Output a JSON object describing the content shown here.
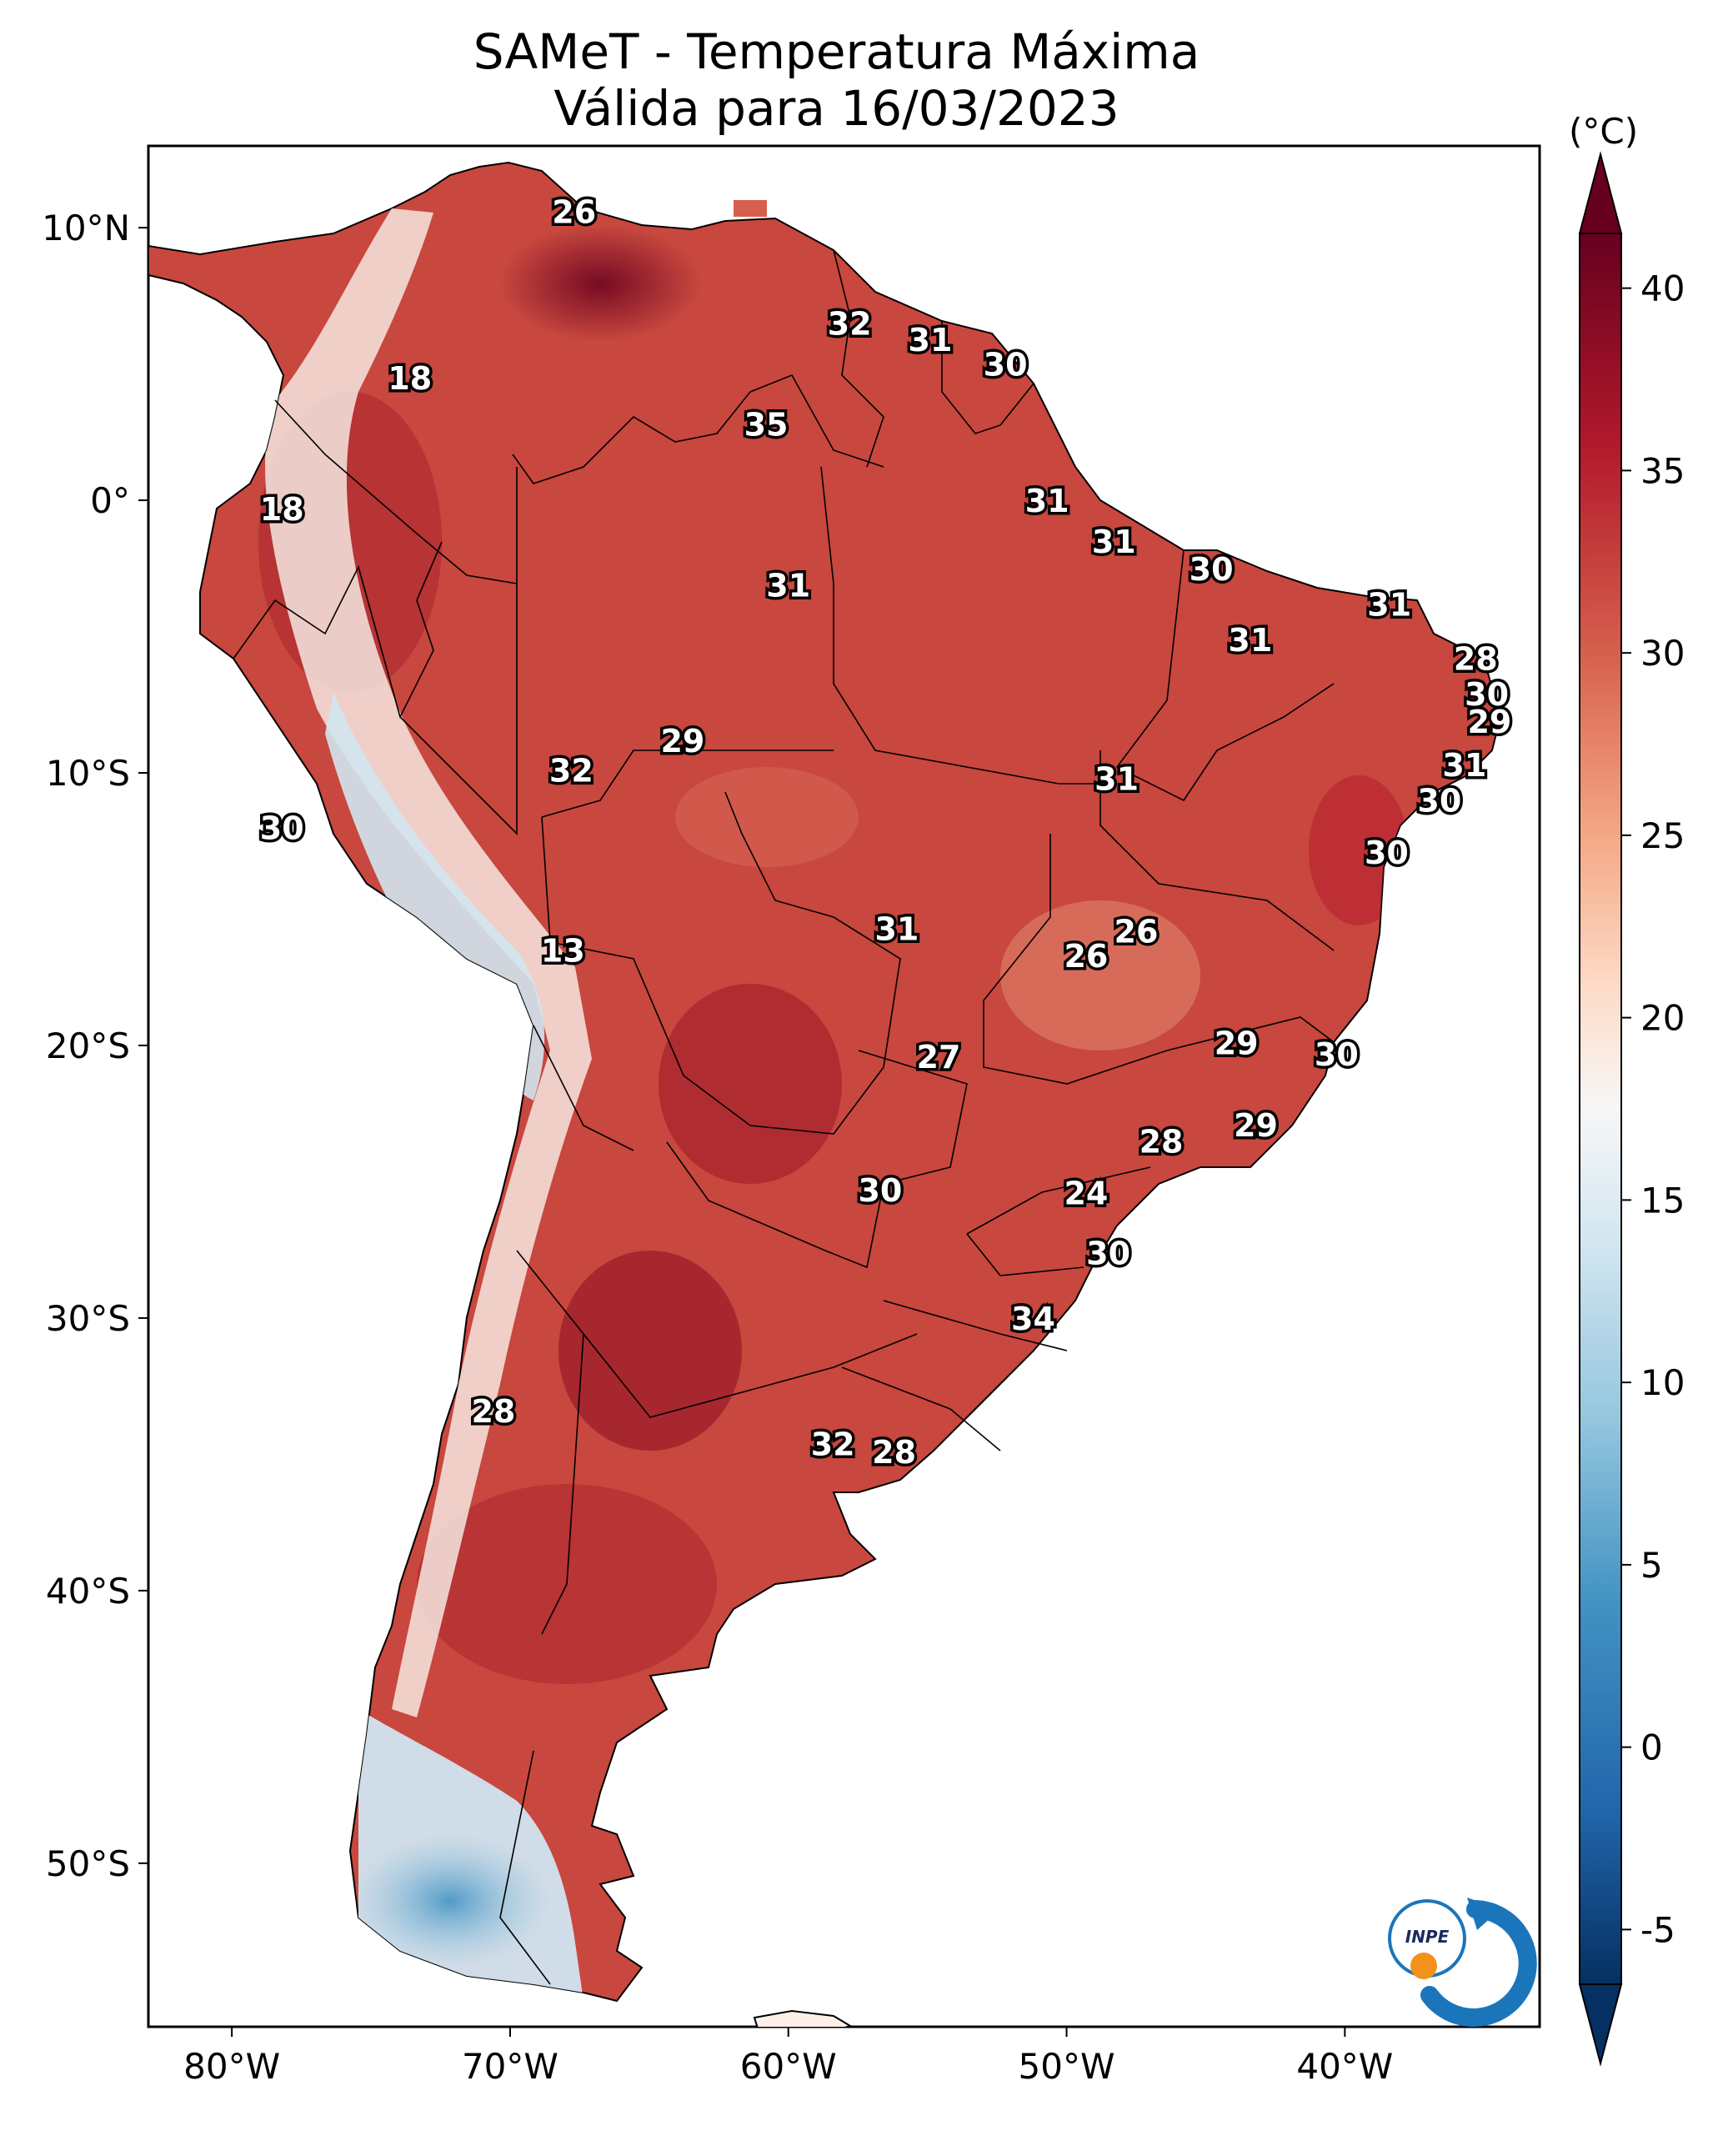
{
  "title": "SAMeT - Temperatura Máxima",
  "subtitle": "Válida para 16/03/2023",
  "colorbar": {
    "unit": "(°C)",
    "ticks": [
      "40",
      "35",
      "30",
      "25",
      "20",
      "15",
      "10",
      "5",
      "0",
      "-5"
    ],
    "colors": [
      "#67001f",
      "#b2182b",
      "#d6604d",
      "#f4a582",
      "#fddbc7",
      "#f7f7f7",
      "#d1e5f0",
      "#92c5de",
      "#4393c3",
      "#2166ac",
      "#053061"
    ]
  },
  "axes": {
    "lon_ticks": [
      "80°W",
      "70°W",
      "60°W",
      "50°W",
      "40°W"
    ],
    "lat_ticks": [
      "10°N",
      "0°",
      "10°S",
      "20°S",
      "30°S",
      "40°S",
      "50°S"
    ],
    "lon_range": [
      -83,
      -33
    ],
    "lat_range": [
      -56,
      13
    ]
  },
  "logo": {
    "text": "INPE",
    "icon": "inpe-logo-icon"
  },
  "station_labels": [
    {
      "value": "26",
      "lon": -67.7,
      "lat": 10.6
    },
    {
      "value": "32",
      "lon": -57.8,
      "lat": 6.5
    },
    {
      "value": "31",
      "lon": -54.9,
      "lat": 5.9
    },
    {
      "value": "30",
      "lon": -52.2,
      "lat": 5.0
    },
    {
      "value": "18",
      "lon": -73.6,
      "lat": 4.5
    },
    {
      "value": "35",
      "lon": -60.8,
      "lat": 2.8
    },
    {
      "value": "18",
      "lon": -78.2,
      "lat": -0.3
    },
    {
      "value": "31",
      "lon": -50.7,
      "lat": 0.0
    },
    {
      "value": "31",
      "lon": -48.3,
      "lat": -1.5
    },
    {
      "value": "30",
      "lon": -44.8,
      "lat": -2.5
    },
    {
      "value": "31",
      "lon": -60.0,
      "lat": -3.1
    },
    {
      "value": "31",
      "lon": -38.4,
      "lat": -3.8
    },
    {
      "value": "31",
      "lon": -43.4,
      "lat": -5.1
    },
    {
      "value": "28",
      "lon": -35.3,
      "lat": -5.8
    },
    {
      "value": "30",
      "lon": -34.9,
      "lat": -7.1
    },
    {
      "value": "29",
      "lon": -34.8,
      "lat": -8.1
    },
    {
      "value": "29",
      "lon": -63.8,
      "lat": -8.8
    },
    {
      "value": "32",
      "lon": -67.8,
      "lat": -9.9
    },
    {
      "value": "31",
      "lon": -35.7,
      "lat": -9.7
    },
    {
      "value": "31",
      "lon": -48.2,
      "lat": -10.2
    },
    {
      "value": "30",
      "lon": -36.6,
      "lat": -11.0
    },
    {
      "value": "30",
      "lon": -78.2,
      "lat": -12.0
    },
    {
      "value": "30",
      "lon": -38.5,
      "lat": -12.9
    },
    {
      "value": "26",
      "lon": -47.5,
      "lat": -15.8
    },
    {
      "value": "31",
      "lon": -56.1,
      "lat": -15.7
    },
    {
      "value": "26",
      "lon": -49.3,
      "lat": -16.7
    },
    {
      "value": "13",
      "lon": -68.1,
      "lat": -16.5
    },
    {
      "value": "29",
      "lon": -43.9,
      "lat": -19.9
    },
    {
      "value": "30",
      "lon": -40.3,
      "lat": -20.3
    },
    {
      "value": "27",
      "lon": -54.6,
      "lat": -20.4
    },
    {
      "value": "29",
      "lon": -43.2,
      "lat": -22.9
    },
    {
      "value": "28",
      "lon": -46.6,
      "lat": -23.5
    },
    {
      "value": "30",
      "lon": -56.7,
      "lat": -25.3
    },
    {
      "value": "24",
      "lon": -49.3,
      "lat": -25.4
    },
    {
      "value": "30",
      "lon": -48.5,
      "lat": -27.6
    },
    {
      "value": "34",
      "lon": -51.2,
      "lat": -30.0
    },
    {
      "value": "28",
      "lon": -70.6,
      "lat": -33.4
    },
    {
      "value": "32",
      "lon": -58.4,
      "lat": -34.6
    },
    {
      "value": "28",
      "lon": -56.2,
      "lat": -34.9
    }
  ]
}
